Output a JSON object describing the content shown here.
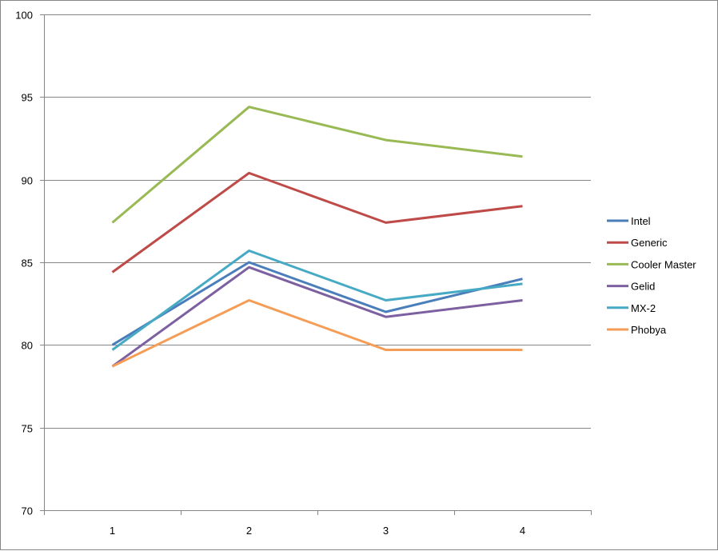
{
  "chart_data": {
    "type": "line",
    "title": "",
    "xlabel": "",
    "ylabel": "",
    "categories": [
      "1",
      "2",
      "3",
      "4"
    ],
    "ylim": [
      70,
      100
    ],
    "yticks": [
      70,
      75,
      80,
      85,
      90,
      95,
      100
    ],
    "grid": "horizontal",
    "legend_position": "right",
    "series": [
      {
        "name": "Intel",
        "color": "#4A7EBB",
        "values": [
          80.0,
          85.0,
          82.0,
          84.0
        ]
      },
      {
        "name": "Generic",
        "color": "#BE4B48",
        "values": [
          84.4,
          90.4,
          87.4,
          88.4
        ]
      },
      {
        "name": "Cooler Master",
        "color": "#98B954",
        "values": [
          87.4,
          94.4,
          92.4,
          91.4
        ]
      },
      {
        "name": "Gelid",
        "color": "#7D60A0",
        "values": [
          78.7,
          84.7,
          81.7,
          82.7
        ]
      },
      {
        "name": "MX-2",
        "color": "#46AAC5",
        "values": [
          79.7,
          85.7,
          82.7,
          83.7
        ]
      },
      {
        "name": "Phobya",
        "color": "#F59D56",
        "values": [
          78.7,
          82.7,
          79.7,
          79.7
        ]
      }
    ]
  }
}
